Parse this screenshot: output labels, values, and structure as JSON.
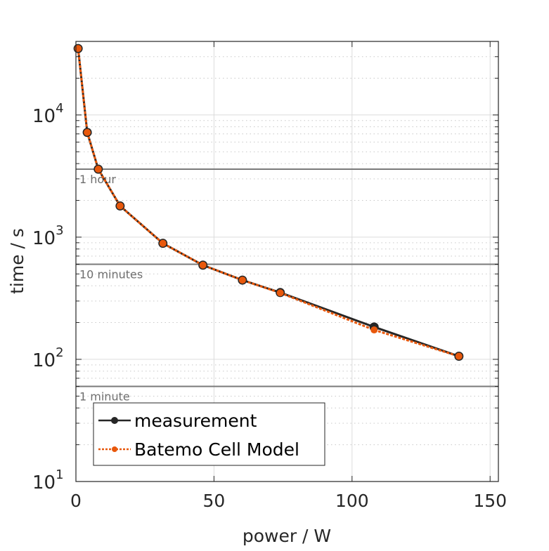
{
  "chart_data": {
    "type": "line",
    "title": "",
    "xlabel": "power / W",
    "ylabel": "time / s",
    "xlim": [
      0,
      153
    ],
    "ylim": [
      10,
      40000
    ],
    "yscale": "log",
    "grid": true,
    "xticks": [
      0,
      50,
      100,
      150
    ],
    "xtick_labels": [
      "0",
      "50",
      "100",
      "150"
    ],
    "yticks": [
      10,
      100,
      1000,
      10000
    ],
    "ytick_labels": [
      {
        "base": "10",
        "exp": "1"
      },
      {
        "base": "10",
        "exp": "2"
      },
      {
        "base": "10",
        "exp": "3"
      },
      {
        "base": "10",
        "exp": "4"
      }
    ],
    "legend_position": "bottom-left",
    "series": [
      {
        "name": "measurement",
        "color": "#262626",
        "x": [
          0.8,
          4.1,
          8.1,
          16,
          31.5,
          46,
          60.3,
          74,
          108,
          138.7
        ],
        "y": [
          35000,
          7200,
          3600,
          1800,
          890,
          590,
          445,
          352,
          184,
          106
        ]
      },
      {
        "name": "Batemo Cell Model",
        "color": "#e8580c",
        "x": [
          0.8,
          4.1,
          8.1,
          16,
          31.5,
          46,
          60.3,
          74,
          108,
          138.7
        ],
        "y": [
          35000,
          7200,
          3600,
          1800,
          890,
          590,
          445,
          350,
          174,
          106
        ]
      }
    ],
    "reference_lines": [
      {
        "label": "1 hour",
        "y": 3600
      },
      {
        "label": "10 minutes",
        "y": 600
      },
      {
        "label": "1 minute",
        "y": 60
      }
    ]
  }
}
